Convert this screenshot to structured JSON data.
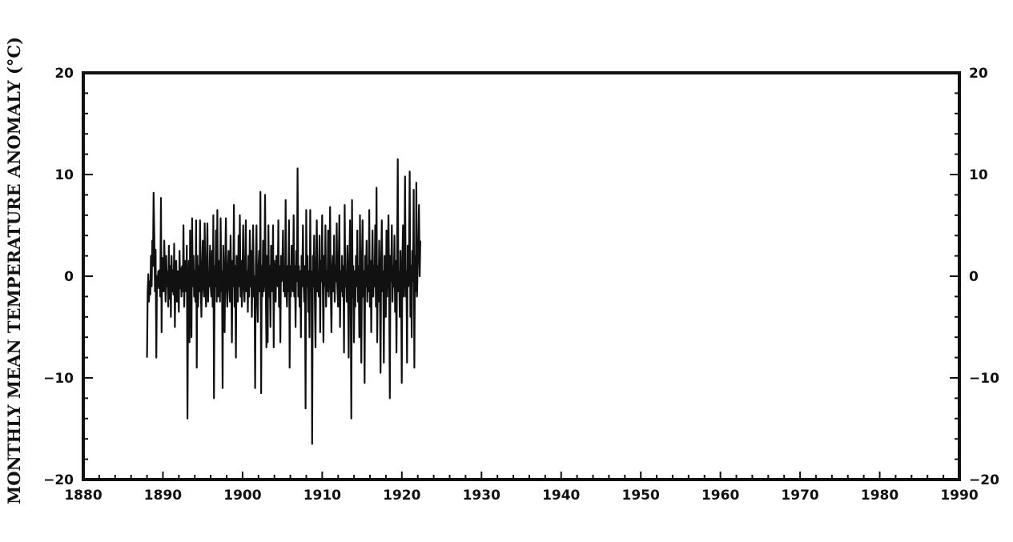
{
  "chart_data": {
    "type": "line",
    "title": "",
    "xlabel": "",
    "ylabel": "MONTHLY MEAN TEMPERATURE ANOMALY (°C)",
    "xlim": [
      1880,
      1990
    ],
    "ylim": [
      -20,
      20
    ],
    "x_ticks": [
      1880,
      1890,
      1900,
      1910,
      1920,
      1930,
      1940,
      1950,
      1960,
      1970,
      1980,
      1990
    ],
    "y_ticks": [
      -20,
      -10,
      0,
      10,
      20
    ],
    "grid": false,
    "legend": "none",
    "line_color": "#111111",
    "series": [
      {
        "x_start": 1888.0,
        "x_step": 0.0833,
        "values": [
          -8.0,
          -1.5,
          0.2,
          -2.5,
          -0.5,
          -1.8,
          2.0,
          -1.0,
          3.5,
          1.0,
          8.2,
          4.0,
          -1.5,
          2.6,
          -8.0,
          0.0,
          -1.0,
          0.5,
          -1.2,
          0.6,
          -2.0,
          7.7,
          -5.5,
          1.8,
          -0.8,
          -1.5,
          3.5,
          0.8,
          -2.5,
          2.0,
          -1.0,
          0.5,
          -3.0,
          3.0,
          -2.2,
          1.0,
          -4.0,
          2.0,
          -1.5,
          0.6,
          -1.8,
          3.2,
          -5.0,
          0.8,
          1.5,
          -2.5,
          0.5,
          -1.0,
          -3.5,
          2.5,
          -1.2,
          0.8,
          -2.0,
          1.0,
          -1.5,
          5.0,
          -3.0,
          1.5,
          -0.5,
          -1.5,
          3.0,
          -14.0,
          -2.0,
          1.5,
          -6.5,
          4.5,
          -1.0,
          -6.0,
          5.7,
          -1.0,
          2.0,
          -2.0,
          0.5,
          -2.5,
          5.5,
          -9.0,
          2.0,
          -3.0,
          1.0,
          -1.5,
          5.5,
          -1.0,
          -4.0,
          0.5,
          3.5,
          -1.0,
          -2.0,
          5.2,
          -1.5,
          -3.0,
          1.0,
          5.2,
          -2.5,
          0.0,
          -1.0,
          3.0,
          -1.0,
          -2.0,
          2.5,
          -3.0,
          6.0,
          -12.0,
          1.0,
          -1.0,
          4.5,
          -2.5,
          6.5,
          -2.0,
          1.5,
          -1.0,
          -2.5,
          5.7,
          -1.5,
          0.5,
          -11.0,
          3.0,
          -2.0,
          -5.5,
          1.5,
          5.7,
          -1.0,
          -3.0,
          0.5,
          2.5,
          -1.0,
          -2.5,
          4.0,
          -0.5,
          -6.5,
          1.5,
          -1.0,
          7.0,
          -3.0,
          1.0,
          -8.0,
          2.0,
          -0.5,
          -2.5,
          4.0,
          -1.0,
          6.0,
          -2.0,
          1.5,
          -3.0,
          0.5,
          5.0,
          -1.0,
          -2.5,
          1.0,
          5.5,
          -1.5,
          0.5,
          -3.5,
          2.0,
          -2.0,
          4.5,
          -1.0,
          2.5,
          -4.0,
          1.0,
          5.0,
          -2.0,
          0.0,
          -11.0,
          1.0,
          5.0,
          -2.0,
          -4.5,
          0.5,
          2.5,
          -1.5,
          8.3,
          -11.5,
          1.0,
          -2.0,
          3.5,
          -1.5,
          0.0,
          8.0,
          -1.0,
          -7.0,
          2.0,
          -6.5,
          5.0,
          -2.0,
          1.0,
          -5.0,
          3.0,
          0.5,
          -1.5,
          5.0,
          -7.0,
          1.5,
          -0.5,
          -2.5,
          2.0,
          0.0,
          -1.0,
          5.5,
          -3.0,
          1.0,
          -6.5,
          2.0,
          -0.5,
          1.0,
          4.5,
          -1.5,
          0.5,
          -2.0,
          7.5,
          -1.0,
          -3.0,
          1.0,
          -1.5,
          5.5,
          -9.0,
          1.0,
          -2.0,
          3.0,
          0.0,
          -1.5,
          6.0,
          -2.0,
          1.0,
          -5.0,
          2.5,
          -0.5,
          10.6,
          -2.0,
          1.0,
          -3.0,
          0.5,
          -6.0,
          2.0,
          -1.0,
          5.0,
          -0.5,
          -2.5,
          1.0,
          -13.0,
          6.5,
          -1.0,
          2.0,
          -3.5,
          0.5,
          -6.0,
          6.5,
          -1.5,
          0.5,
          -16.5,
          2.0,
          -1.0,
          4.0,
          -2.5,
          -7.0,
          1.0,
          5.5,
          -1.5,
          0.0,
          -2.0,
          4.0,
          -5.5,
          1.5,
          -0.5,
          6.0,
          -1.0,
          -6.5,
          2.0,
          -1.0,
          5.0,
          -3.0,
          0.5,
          -1.5,
          4.5,
          -2.0,
          1.0,
          6.8,
          -1.0,
          -5.5,
          0.5,
          2.0,
          -1.5,
          4.0,
          -2.5,
          1.0,
          -0.5,
          5.2,
          -1.0,
          -3.0,
          1.5,
          6.0,
          -5.0,
          0.5,
          -1.5,
          2.0,
          -2.0,
          1.0,
          -7.5,
          7.0,
          -1.0,
          0.5,
          -2.5,
          3.0,
          -1.0,
          -8.0,
          1.0,
          5.5,
          -1.5,
          -14.0,
          7.5,
          -2.0,
          1.0,
          -6.5,
          0.5,
          -3.0,
          2.0,
          -1.0,
          4.5,
          -2.5,
          1.0,
          -6.0,
          6.0,
          -1.0,
          -8.5,
          1.5,
          5.5,
          -2.0,
          0.5,
          -10.5,
          2.0,
          -1.0,
          3.5,
          -2.5,
          1.0,
          -1.5,
          6.5,
          -3.0,
          1.5,
          -5.5,
          0.5,
          4.5,
          -2.0,
          1.0,
          -1.0,
          5.0,
          -3.0,
          8.7,
          -6.5,
          1.0,
          -2.5,
          3.5,
          -1.0,
          -9.5,
          1.5,
          5.5,
          -1.5,
          0.5,
          -8.5,
          2.0,
          -1.0,
          -4.0,
          4.5,
          -2.0,
          1.0,
          6.0,
          -1.5,
          -12.0,
          2.0,
          -0.5,
          5.0,
          -2.5,
          1.0,
          -1.0,
          4.0,
          -3.5,
          1.5,
          -7.5,
          2.0,
          11.5,
          -1.5,
          0.5,
          -4.0,
          2.5,
          -1.0,
          -10.5,
          2.0,
          5.0,
          -2.0,
          1.0,
          9.8,
          -2.0,
          0.5,
          -8.5,
          3.0,
          -1.0,
          2.0,
          10.3,
          -4.0,
          1.0,
          -6.0,
          2.5,
          -0.5,
          8.5,
          -9.0,
          2.0,
          -1.5,
          9.2,
          -2.0,
          1.0,
          3.0,
          7.0,
          0.0,
          3.5
        ]
      }
    ]
  }
}
